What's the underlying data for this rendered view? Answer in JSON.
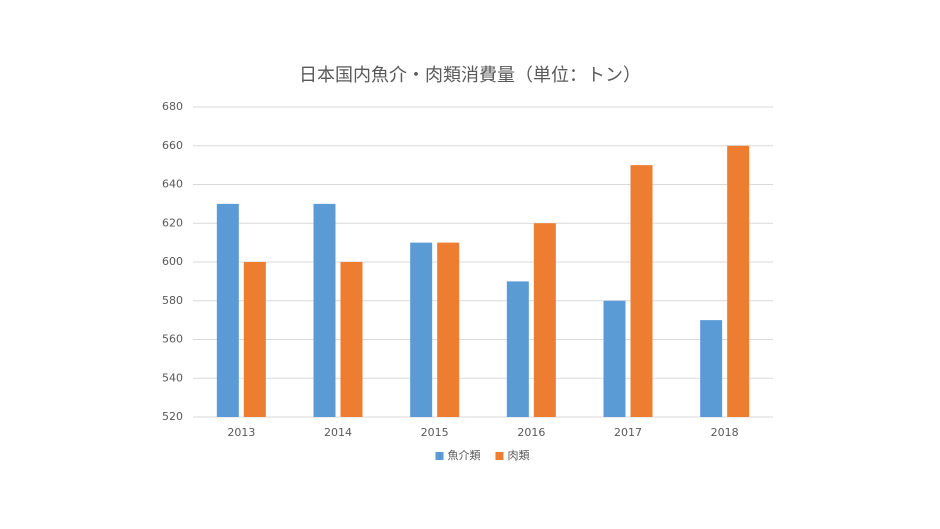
{
  "chart_data": {
    "type": "bar",
    "title": "日本国内魚介・肉類消費量（単位：トン）",
    "categories": [
      "2013",
      "2014",
      "2015",
      "2016",
      "2017",
      "2018"
    ],
    "series": [
      {
        "name": "魚介類",
        "color": "#5b9bd5",
        "values": [
          630,
          630,
          610,
          590,
          580,
          570
        ]
      },
      {
        "name": "肉類",
        "color": "#ed7d31",
        "values": [
          600,
          600,
          610,
          620,
          650,
          660
        ]
      }
    ],
    "ylim": [
      520,
      680
    ],
    "yticks": [
      520,
      540,
      560,
      580,
      600,
      620,
      640,
      660,
      680
    ],
    "grid": true,
    "legend": "bottom"
  }
}
